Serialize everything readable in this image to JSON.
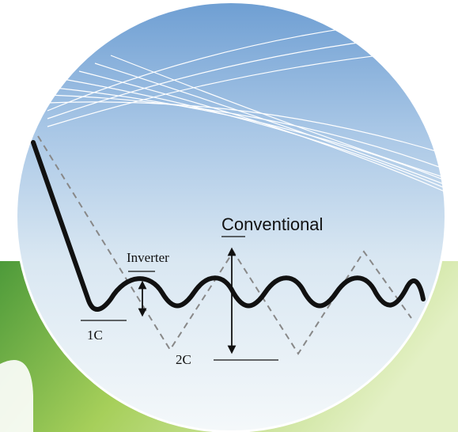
{
  "labels": {
    "conventional": "Conventional",
    "inverter": "Inverter",
    "one_c": "1C",
    "two_c": "2C"
  }
}
